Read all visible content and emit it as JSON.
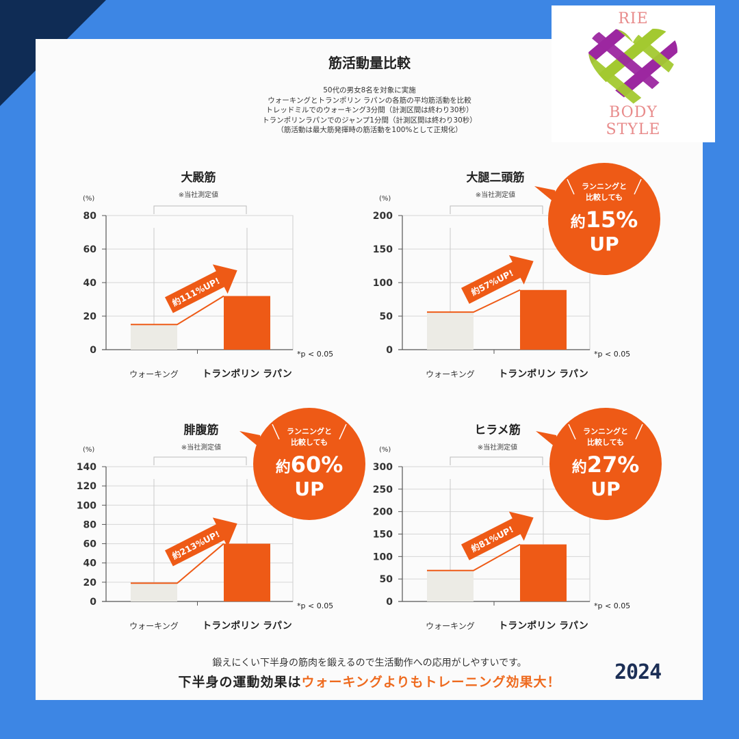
{
  "header": {
    "title": "筋活動量比較",
    "description": [
      "50代の男女8名を対象に実施",
      "ウォーキングとトランポリン ラパンの各筋の平均筋活動を比較",
      "トレッドミルでのウォーキング3分間（計測区間は終わり30秒）",
      "トランポリンラパンでのジャンプ1分間（計測区間は終わり30秒）",
      "（筋活動は最大筋発揮時の筋活動を100%として正規化）"
    ]
  },
  "logo": {
    "line1": "RIE",
    "line2": "BODY",
    "line3": "STYLE"
  },
  "colors": {
    "background": "#3d86e4",
    "orange": "#ee5a16",
    "walking_bar": "#ecebe5",
    "year": "#1c2f56"
  },
  "chart_data": [
    {
      "type": "bar",
      "title": "大殿筋",
      "note": "※当社測定値",
      "ylabel": "(%)",
      "ylim": [
        0,
        80
      ],
      "yticks": [
        0,
        20,
        40,
        60,
        80
      ],
      "categories": [
        "ウォーキング",
        "トランポリン ラパン"
      ],
      "values": [
        15,
        32
      ],
      "arrow_label": "約111%UP!",
      "significance": "*p < 0.05",
      "bubble": null
    },
    {
      "type": "bar",
      "title": "大腿二頭筋",
      "note": "※当社測定値",
      "ylabel": "(%)",
      "ylim": [
        0,
        200
      ],
      "yticks": [
        0,
        50,
        100,
        150,
        200
      ],
      "categories": [
        "ウォーキング",
        "トランポリン ラパン"
      ],
      "values": [
        56,
        89
      ],
      "arrow_label": "約57%UP!",
      "significance": "*p < 0.05",
      "bubble": {
        "line1": "ランニングと",
        "line2": "比較しても",
        "big_prefix": "約",
        "big_value": "15%",
        "up": "UP"
      }
    },
    {
      "type": "bar",
      "title": "腓腹筋",
      "note": "※当社測定値",
      "ylabel": "(%)",
      "ylim": [
        0,
        140
      ],
      "yticks": [
        0,
        20,
        40,
        60,
        80,
        100,
        120,
        140
      ],
      "categories": [
        "ウォーキング",
        "トランポリン ラパン"
      ],
      "values": [
        19,
        60
      ],
      "arrow_label": "約213%UP!",
      "significance": "*p < 0.05",
      "bubble": {
        "line1": "ランニングと",
        "line2": "比較しても",
        "big_prefix": "約",
        "big_value": "60%",
        "up": "UP"
      }
    },
    {
      "type": "bar",
      "title": "ヒラメ筋",
      "note": "※当社測定値",
      "ylabel": "(%)",
      "ylim": [
        0,
        300
      ],
      "yticks": [
        0,
        50,
        100,
        150,
        200,
        250,
        300
      ],
      "categories": [
        "ウォーキング",
        "トランポリン ラパン"
      ],
      "values": [
        69,
        127
      ],
      "arrow_label": "約81%UP!",
      "significance": "*p < 0.05",
      "bubble": {
        "line1": "ランニングと",
        "line2": "比較しても",
        "big_prefix": "約",
        "big_value": "27%",
        "up": "UP"
      }
    }
  ],
  "footer": {
    "line1": "鍛えにくい下半身の筋肉を鍛えるので生活動作への応用がしやすいです。",
    "line2_prefix": "下半身の運動効果は",
    "line2_highlight": "ウォーキングよりもトレーニング効果大！"
  },
  "year": "2024"
}
